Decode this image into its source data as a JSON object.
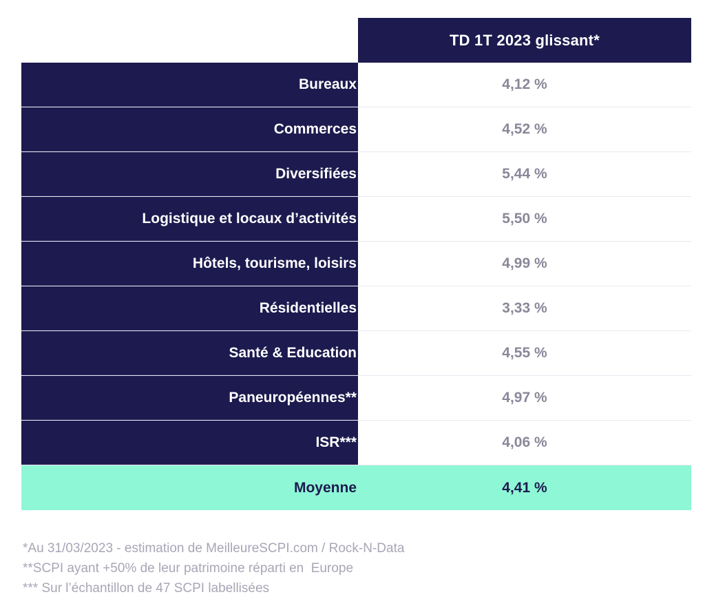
{
  "chart_data": {
    "type": "table",
    "title": "",
    "columns": [
      "",
      "TD 1T 2023 glissant*"
    ],
    "rows": [
      {
        "label": "Bureaux",
        "value": "4,12 %"
      },
      {
        "label": "Commerces",
        "value": "4,52 %"
      },
      {
        "label": "Diversifiées",
        "value": "5,44 %"
      },
      {
        "label": "Logistique et locaux d’activités",
        "value": "5,50 %"
      },
      {
        "label": "Hôtels, tourisme, loisirs",
        "value": "4,99 %"
      },
      {
        "label": "Résidentielles",
        "value": "3,33 %"
      },
      {
        "label": "Santé & Education",
        "value": "4,55 %"
      },
      {
        "label": "Paneuropéennes**",
        "value": "4,97 %"
      },
      {
        "label": "ISR***",
        "value": "4,06 %"
      }
    ],
    "summary": {
      "label": "Moyenne",
      "value": "4,41 %"
    },
    "footnotes": [
      "*Au 31/03/2023 - estimation de MeilleureSCPI.com / Rock-N-Data",
      "**SCPI ayant +50% de leur patrimoine réparti en  Europe",
      "*** Sur l’échantillon de 47 SCPI labellisées"
    ],
    "colors": {
      "header_bg": "#1c1a4e",
      "label_bg": "#1c1a4e",
      "value_text": "#8a8799",
      "summary_bg": "#8ef7d6",
      "footnote_text": "#a8a6b6"
    }
  }
}
